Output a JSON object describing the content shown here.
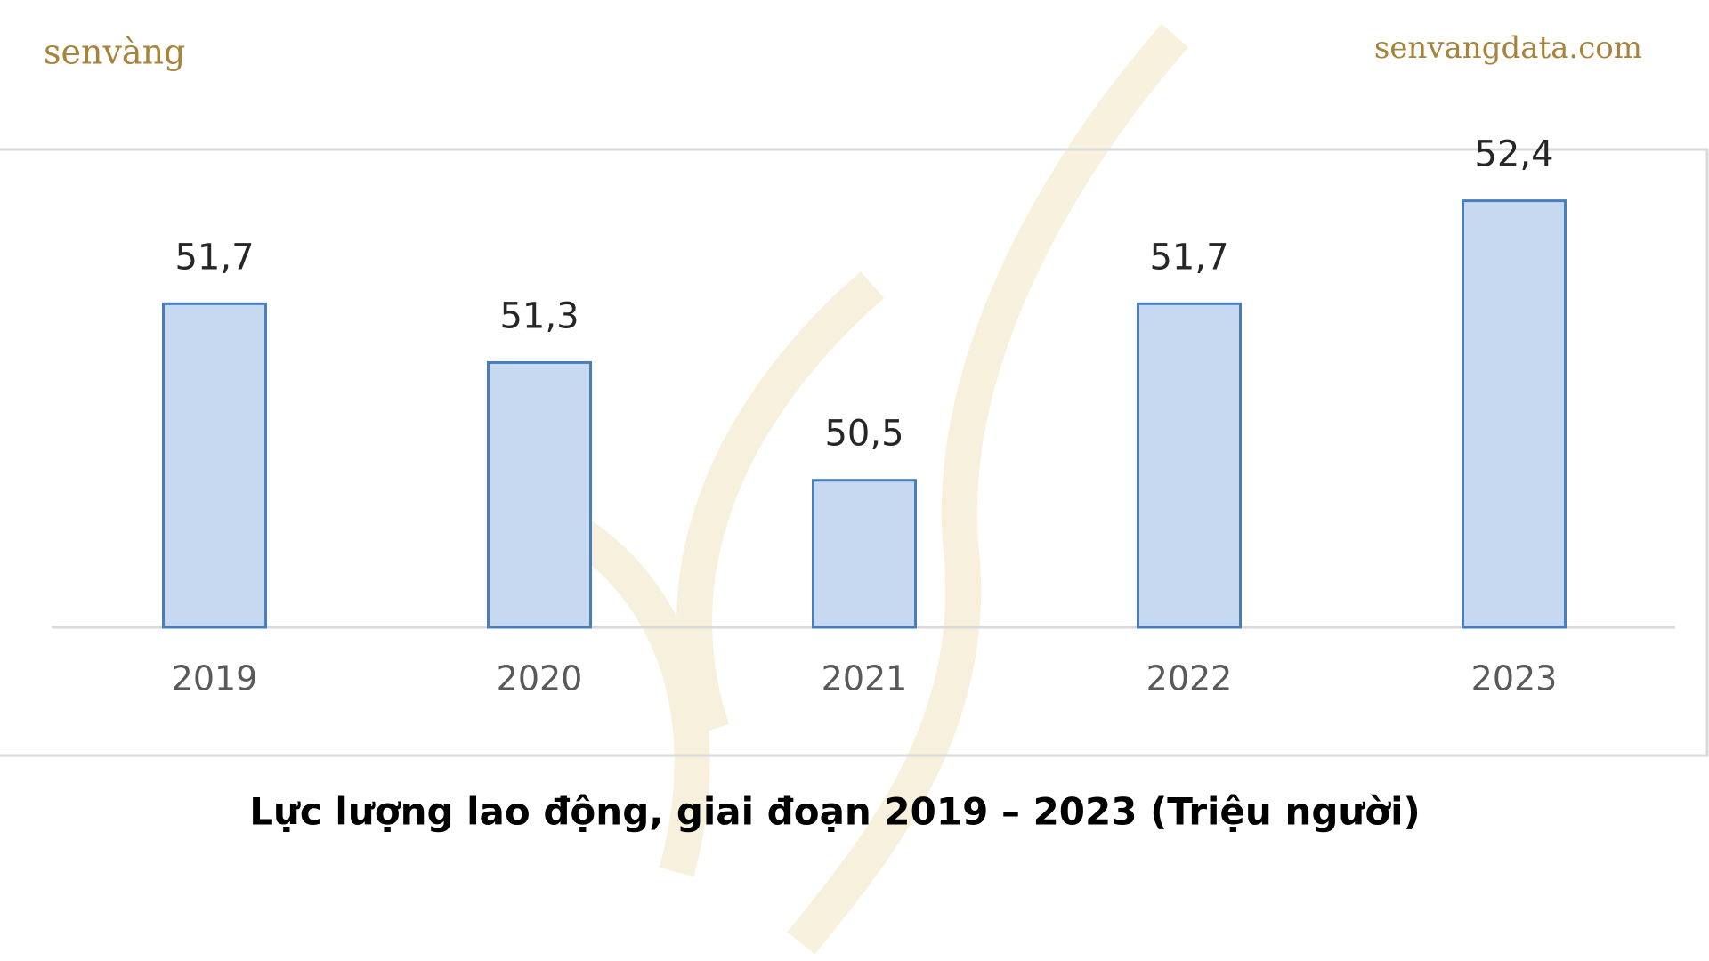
{
  "brand": "senvàng",
  "website": "senvangdata.com",
  "chart_data": {
    "type": "bar",
    "title": "Lực lượng lao động, giai đoạn 2019 – 2023 (Triệu người)",
    "categories": [
      "2019",
      "2020",
      "2021",
      "2022",
      "2023"
    ],
    "values": [
      51.7,
      51.3,
      50.5,
      51.7,
      52.4
    ],
    "value_labels": [
      "51,7",
      "51,3",
      "50,5",
      "51,7",
      "52,4"
    ],
    "color": "#c6d9f1",
    "edge_color": "#4a7ebb",
    "ylim": [
      49.5,
      52.7
    ]
  }
}
